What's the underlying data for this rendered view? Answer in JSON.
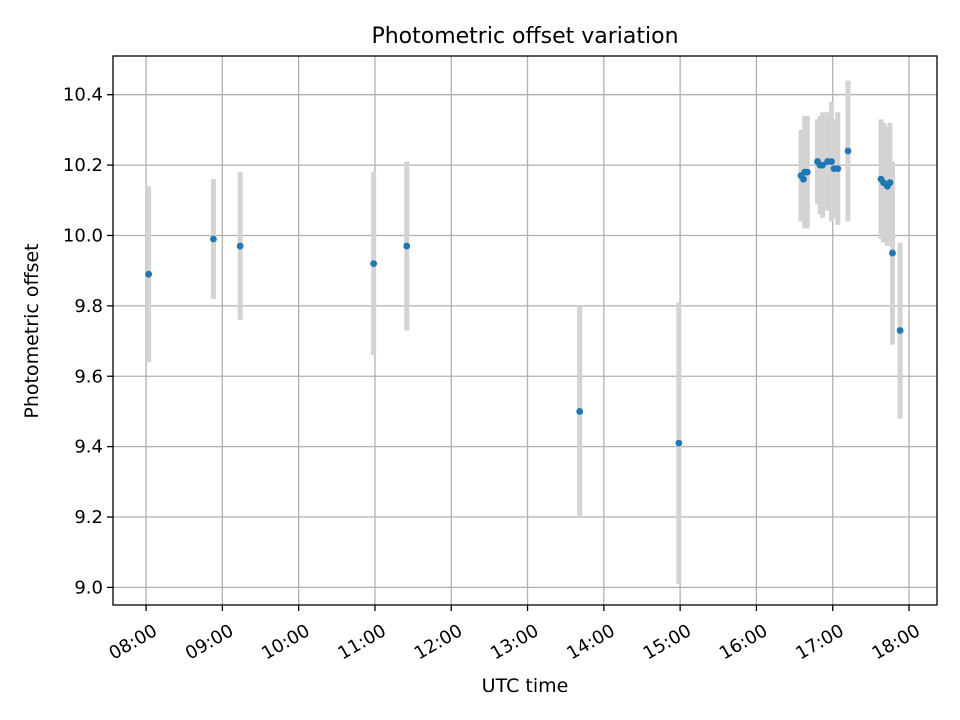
{
  "chart_data": {
    "type": "scatter",
    "title": "Photometric offset variation",
    "xlabel": "UTC time",
    "ylabel": "Photometric offset",
    "xlim": [
      "07:34",
      "18:22"
    ],
    "ylim": [
      8.95,
      10.51
    ],
    "yticks": [
      9.0,
      9.2,
      9.4,
      9.6,
      9.8,
      10.0,
      10.2,
      10.4
    ],
    "ytick_labels": [
      "9.0",
      "9.2",
      "9.4",
      "9.6",
      "9.8",
      "10.0",
      "10.2",
      "10.4"
    ],
    "xticks": [
      "08:00",
      "09:00",
      "10:00",
      "11:00",
      "12:00",
      "13:00",
      "14:00",
      "15:00",
      "16:00",
      "17:00",
      "18:00"
    ],
    "grid": true,
    "colors": {
      "point": "#1f77b4",
      "errorbar": "#d3d3d3",
      "grid": "#b0b0b0"
    },
    "points": [
      {
        "x": "08:02",
        "y": 9.89,
        "err": 0.25
      },
      {
        "x": "08:53",
        "y": 9.99,
        "err": 0.17
      },
      {
        "x": "09:14",
        "y": 9.97,
        "err": 0.21
      },
      {
        "x": "10:59",
        "y": 9.92,
        "err": 0.26
      },
      {
        "x": "11:25",
        "y": 9.97,
        "err": 0.24
      },
      {
        "x": "13:41",
        "y": 9.5,
        "err": 0.3
      },
      {
        "x": "14:59",
        "y": 9.41,
        "err": 0.4
      },
      {
        "x": "16:35",
        "y": 10.17,
        "err": 0.13
      },
      {
        "x": "16:37",
        "y": 10.16,
        "err": 0.12
      },
      {
        "x": "16:38",
        "y": 10.18,
        "err": 0.16
      },
      {
        "x": "16:40",
        "y": 10.18,
        "err": 0.16
      },
      {
        "x": "16:48",
        "y": 10.21,
        "err": 0.12
      },
      {
        "x": "16:50",
        "y": 10.2,
        "err": 0.14
      },
      {
        "x": "16:52",
        "y": 10.2,
        "err": 0.15
      },
      {
        "x": "16:56",
        "y": 10.21,
        "err": 0.14
      },
      {
        "x": "16:59",
        "y": 10.21,
        "err": 0.17
      },
      {
        "x": "17:01",
        "y": 10.19,
        "err": 0.14
      },
      {
        "x": "17:04",
        "y": 10.19,
        "err": 0.16
      },
      {
        "x": "17:12",
        "y": 10.24,
        "err": 0.2
      },
      {
        "x": "17:38",
        "y": 10.16,
        "err": 0.17
      },
      {
        "x": "17:40",
        "y": 10.15,
        "err": 0.17
      },
      {
        "x": "17:43",
        "y": 10.14,
        "err": 0.17
      },
      {
        "x": "17:45",
        "y": 10.15,
        "err": 0.17
      },
      {
        "x": "17:47",
        "y": 9.95,
        "err": 0.26
      },
      {
        "x": "17:53",
        "y": 9.73,
        "err": 0.25
      }
    ]
  }
}
